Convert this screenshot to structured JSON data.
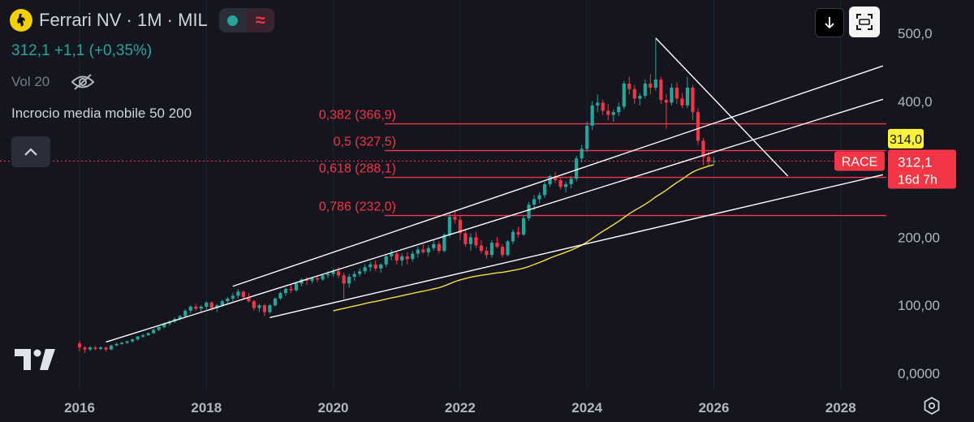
{
  "header": {
    "symbol_title": "Ferrari NV · 1M · MIL",
    "price_line": "312,1  +1,1 (+0,35%)",
    "volume_label": "Vol 20",
    "indicator_label": "Incrocio media mobile 50 200"
  },
  "icons": {
    "logo": "ferrari-horse-icon",
    "visibility": "eye-off-icon",
    "collapse": "chevron-up-icon",
    "download": "arrow-down-icon",
    "fullscreen": "fullscreen-icon",
    "settings": "hexagon-settings-icon",
    "brand": "tradingview-logo-icon"
  },
  "colors": {
    "up": "#26a69a",
    "down": "#f23645",
    "fib": "#f23645",
    "ma": "#f7e23c",
    "trendline": "#ffffff",
    "background": "#15151f"
  },
  "chart_data": {
    "type": "candlestick",
    "x_ticks": [
      "2016",
      "2018",
      "2020",
      "2022",
      "2024",
      "2026",
      "2028"
    ],
    "y_ticks": [
      "500,0",
      "400,0",
      "200,00",
      "100,00",
      "0,0000"
    ],
    "ylim": [
      0,
      500
    ],
    "fib_levels": [
      {
        "label": "0,382 (366,9)",
        "value": 366.9
      },
      {
        "label": "0,5 (327,5)",
        "value": 327.5
      },
      {
        "label": "0,618 (288,1)",
        "value": 288.1
      },
      {
        "label": "0,786 (232,0)",
        "value": 232.0
      }
    ],
    "current_price": {
      "value": 312.1,
      "label": "312,1",
      "countdown": "16d 7h",
      "symbol": "RACE"
    },
    "high_label": {
      "value": 314.0,
      "label": "314,0"
    },
    "trendlines": [
      {
        "from": [
          "2018-06",
          128
        ],
        "to": [
          "2028-09",
          452
        ]
      },
      {
        "from": [
          "2016-06",
          46
        ],
        "to": [
          "2028-09",
          403
        ]
      },
      {
        "from": [
          "2019-01",
          82
        ],
        "to": [
          "2028-09",
          292
        ]
      },
      {
        "from": [
          "2025-02",
          493
        ],
        "to": [
          "2027-03",
          290
        ]
      }
    ],
    "candles": [
      [
        "2016-01",
        44,
        48,
        32,
        38
      ],
      [
        "2016-02",
        38,
        40,
        30,
        35
      ],
      [
        "2016-03",
        35,
        40,
        33,
        38
      ],
      [
        "2016-04",
        38,
        40,
        34,
        36
      ],
      [
        "2016-05",
        36,
        40,
        34,
        38
      ],
      [
        "2016-06",
        38,
        39,
        32,
        35
      ],
      [
        "2016-07",
        35,
        42,
        34,
        41
      ],
      [
        "2016-08",
        41,
        45,
        40,
        43
      ],
      [
        "2016-09",
        43,
        46,
        42,
        45
      ],
      [
        "2016-10",
        45,
        48,
        43,
        47
      ],
      [
        "2016-11",
        47,
        51,
        45,
        50
      ],
      [
        "2016-12",
        50,
        55,
        48,
        54
      ],
      [
        "2017-01",
        54,
        58,
        52,
        56
      ],
      [
        "2017-02",
        56,
        60,
        55,
        59
      ],
      [
        "2017-03",
        59,
        66,
        58,
        64
      ],
      [
        "2017-04",
        64,
        70,
        62,
        68
      ],
      [
        "2017-05",
        68,
        75,
        66,
        73
      ],
      [
        "2017-06",
        73,
        78,
        70,
        76
      ],
      [
        "2017-07",
        76,
        82,
        74,
        80
      ],
      [
        "2017-08",
        80,
        86,
        78,
        84
      ],
      [
        "2017-09",
        84,
        94,
        82,
        92
      ],
      [
        "2017-10",
        92,
        100,
        88,
        98
      ],
      [
        "2017-11",
        98,
        102,
        92,
        95
      ],
      [
        "2017-12",
        95,
        100,
        90,
        98
      ],
      [
        "2018-01",
        98,
        106,
        94,
        104
      ],
      [
        "2018-02",
        104,
        106,
        92,
        96
      ],
      [
        "2018-03",
        96,
        102,
        90,
        100
      ],
      [
        "2018-04",
        100,
        108,
        98,
        106
      ],
      [
        "2018-05",
        106,
        112,
        102,
        110
      ],
      [
        "2018-06",
        110,
        118,
        106,
        114
      ],
      [
        "2018-07",
        114,
        124,
        110,
        120
      ],
      [
        "2018-08",
        120,
        122,
        110,
        112
      ],
      [
        "2018-09",
        112,
        118,
        104,
        106
      ],
      [
        "2018-10",
        106,
        108,
        92,
        96
      ],
      [
        "2018-11",
        96,
        102,
        90,
        100
      ],
      [
        "2018-12",
        100,
        102,
        84,
        90
      ],
      [
        "2019-01",
        90,
        102,
        88,
        100
      ],
      [
        "2019-02",
        100,
        112,
        98,
        110
      ],
      [
        "2019-03",
        110,
        120,
        108,
        118
      ],
      [
        "2019-04",
        118,
        126,
        114,
        124
      ],
      [
        "2019-05",
        124,
        130,
        118,
        122
      ],
      [
        "2019-06",
        122,
        134,
        120,
        132
      ],
      [
        "2019-07",
        132,
        140,
        128,
        138
      ],
      [
        "2019-08",
        138,
        142,
        130,
        136
      ],
      [
        "2019-09",
        136,
        142,
        132,
        140
      ],
      [
        "2019-10",
        140,
        144,
        134,
        138
      ],
      [
        "2019-11",
        138,
        146,
        136,
        144
      ],
      [
        "2019-12",
        144,
        150,
        140,
        146
      ],
      [
        "2020-01",
        146,
        154,
        142,
        150
      ],
      [
        "2020-02",
        150,
        156,
        140,
        144
      ],
      [
        "2020-03",
        144,
        148,
        110,
        132
      ],
      [
        "2020-04",
        132,
        146,
        126,
        142
      ],
      [
        "2020-05",
        142,
        150,
        136,
        146
      ],
      [
        "2020-06",
        146,
        154,
        142,
        150
      ],
      [
        "2020-07",
        150,
        160,
        146,
        156
      ],
      [
        "2020-08",
        156,
        164,
        150,
        160
      ],
      [
        "2020-09",
        160,
        166,
        150,
        154
      ],
      [
        "2020-10",
        154,
        162,
        148,
        160
      ],
      [
        "2020-11",
        160,
        174,
        156,
        172
      ],
      [
        "2020-12",
        172,
        182,
        166,
        176
      ],
      [
        "2021-01",
        176,
        180,
        160,
        166
      ],
      [
        "2021-02",
        166,
        176,
        158,
        172
      ],
      [
        "2021-03",
        172,
        178,
        160,
        168
      ],
      [
        "2021-04",
        168,
        180,
        164,
        176
      ],
      [
        "2021-05",
        176,
        186,
        170,
        182
      ],
      [
        "2021-06",
        182,
        190,
        176,
        178
      ],
      [
        "2021-07",
        178,
        188,
        172,
        184
      ],
      [
        "2021-08",
        184,
        196,
        180,
        190
      ],
      [
        "2021-09",
        190,
        194,
        176,
        180
      ],
      [
        "2021-10",
        180,
        206,
        178,
        204
      ],
      [
        "2021-11",
        204,
        236,
        200,
        230
      ],
      [
        "2021-12",
        230,
        240,
        220,
        226
      ],
      [
        "2022-01",
        226,
        232,
        196,
        206
      ],
      [
        "2022-02",
        206,
        212,
        186,
        190
      ],
      [
        "2022-03",
        190,
        206,
        180,
        200
      ],
      [
        "2022-04",
        200,
        208,
        184,
        188
      ],
      [
        "2022-05",
        188,
        196,
        176,
        180
      ],
      [
        "2022-06",
        180,
        186,
        168,
        174
      ],
      [
        "2022-07",
        174,
        196,
        170,
        192
      ],
      [
        "2022-08",
        192,
        200,
        184,
        186
      ],
      [
        "2022-09",
        186,
        190,
        170,
        174
      ],
      [
        "2022-10",
        174,
        196,
        172,
        194
      ],
      [
        "2022-11",
        194,
        212,
        190,
        208
      ],
      [
        "2022-12",
        208,
        216,
        200,
        204
      ],
      [
        "2023-01",
        204,
        232,
        202,
        228
      ],
      [
        "2023-02",
        228,
        252,
        224,
        248
      ],
      [
        "2023-03",
        248,
        262,
        240,
        256
      ],
      [
        "2023-04",
        256,
        266,
        250,
        262
      ],
      [
        "2023-05",
        262,
        282,
        258,
        278
      ],
      [
        "2023-06",
        278,
        292,
        274,
        290
      ],
      [
        "2023-07",
        290,
        296,
        280,
        284
      ],
      [
        "2023-08",
        284,
        288,
        270,
        274
      ],
      [
        "2023-09",
        274,
        282,
        266,
        278
      ],
      [
        "2023-10",
        278,
        290,
        272,
        286
      ],
      [
        "2023-11",
        286,
        320,
        282,
        316
      ],
      [
        "2023-12",
        316,
        336,
        310,
        330
      ],
      [
        "2024-01",
        330,
        370,
        326,
        364
      ],
      [
        "2024-02",
        364,
        400,
        358,
        394
      ],
      [
        "2024-03",
        394,
        410,
        384,
        398
      ],
      [
        "2024-04",
        398,
        402,
        380,
        386
      ],
      [
        "2024-05",
        386,
        396,
        372,
        380
      ],
      [
        "2024-06",
        380,
        388,
        370,
        384
      ],
      [
        "2024-07",
        384,
        398,
        378,
        392
      ],
      [
        "2024-08",
        392,
        430,
        388,
        426
      ],
      [
        "2024-09",
        426,
        436,
        410,
        418
      ],
      [
        "2024-10",
        418,
        424,
        396,
        404
      ],
      [
        "2024-11",
        404,
        412,
        394,
        408
      ],
      [
        "2024-12",
        408,
        432,
        404,
        426
      ],
      [
        "2025-01",
        426,
        440,
        410,
        420
      ],
      [
        "2025-02",
        420,
        493,
        416,
        432
      ],
      [
        "2025-03",
        432,
        436,
        396,
        402
      ],
      [
        "2025-04",
        402,
        410,
        360,
        398
      ],
      [
        "2025-05",
        398,
        426,
        394,
        420
      ],
      [
        "2025-06",
        420,
        428,
        396,
        404
      ],
      [
        "2025-07",
        404,
        412,
        390,
        394
      ],
      [
        "2025-08",
        394,
        436,
        390,
        420
      ],
      [
        "2025-09",
        420,
        424,
        372,
        384
      ],
      [
        "2025-10",
        384,
        390,
        336,
        342
      ],
      [
        "2025-11",
        342,
        346,
        306,
        318
      ],
      [
        "2025-12",
        318,
        326,
        304,
        311
      ],
      [
        "2026-01",
        311,
        318,
        308,
        312.1
      ]
    ]
  }
}
